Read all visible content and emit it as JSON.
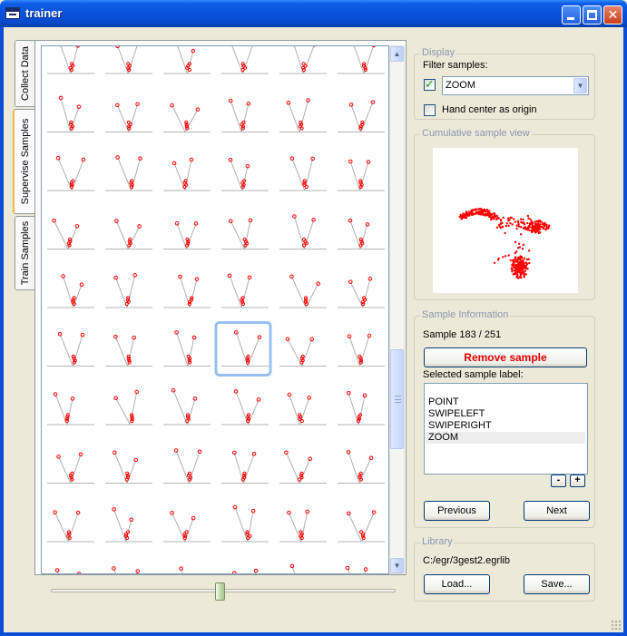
{
  "window": {
    "title": "trainer"
  },
  "tabs": [
    {
      "label": "Collect Data",
      "active": false
    },
    {
      "label": "Supervise Samples",
      "active": true
    },
    {
      "label": "Train Samples",
      "active": false
    }
  ],
  "grid": {
    "columns": 6,
    "visible_rows": 9,
    "selected_row": 5,
    "selected_col": 3,
    "accent_color": "#ff0000",
    "selection_color": "#98c0f4"
  },
  "slider": {
    "value_fraction": 0.49
  },
  "display": {
    "title": "Display",
    "filter_label": "Filter samples:",
    "filter_checked": true,
    "filter_value": "ZOOM",
    "hand_center_label": "Hand center as origin",
    "hand_center_checked": false
  },
  "cumulative": {
    "title": "Cumulative sample view"
  },
  "sample_info": {
    "title": "Sample Information",
    "sample_text": "Sample 183 / 251",
    "remove_button": "Remove sample",
    "label_caption": "Selected sample label:",
    "labels": [
      "POINT",
      "SWIPELEFT",
      "SWIPERIGHT",
      "ZOOM"
    ],
    "selected_label": "ZOOM",
    "minus_label": "-",
    "plus_label": "+",
    "previous_button": "Previous",
    "next_button": "Next"
  },
  "library": {
    "title": "Library",
    "path": "C:/egr/3gest2.egrlib",
    "load_button": "Load...",
    "save_button": "Save..."
  }
}
